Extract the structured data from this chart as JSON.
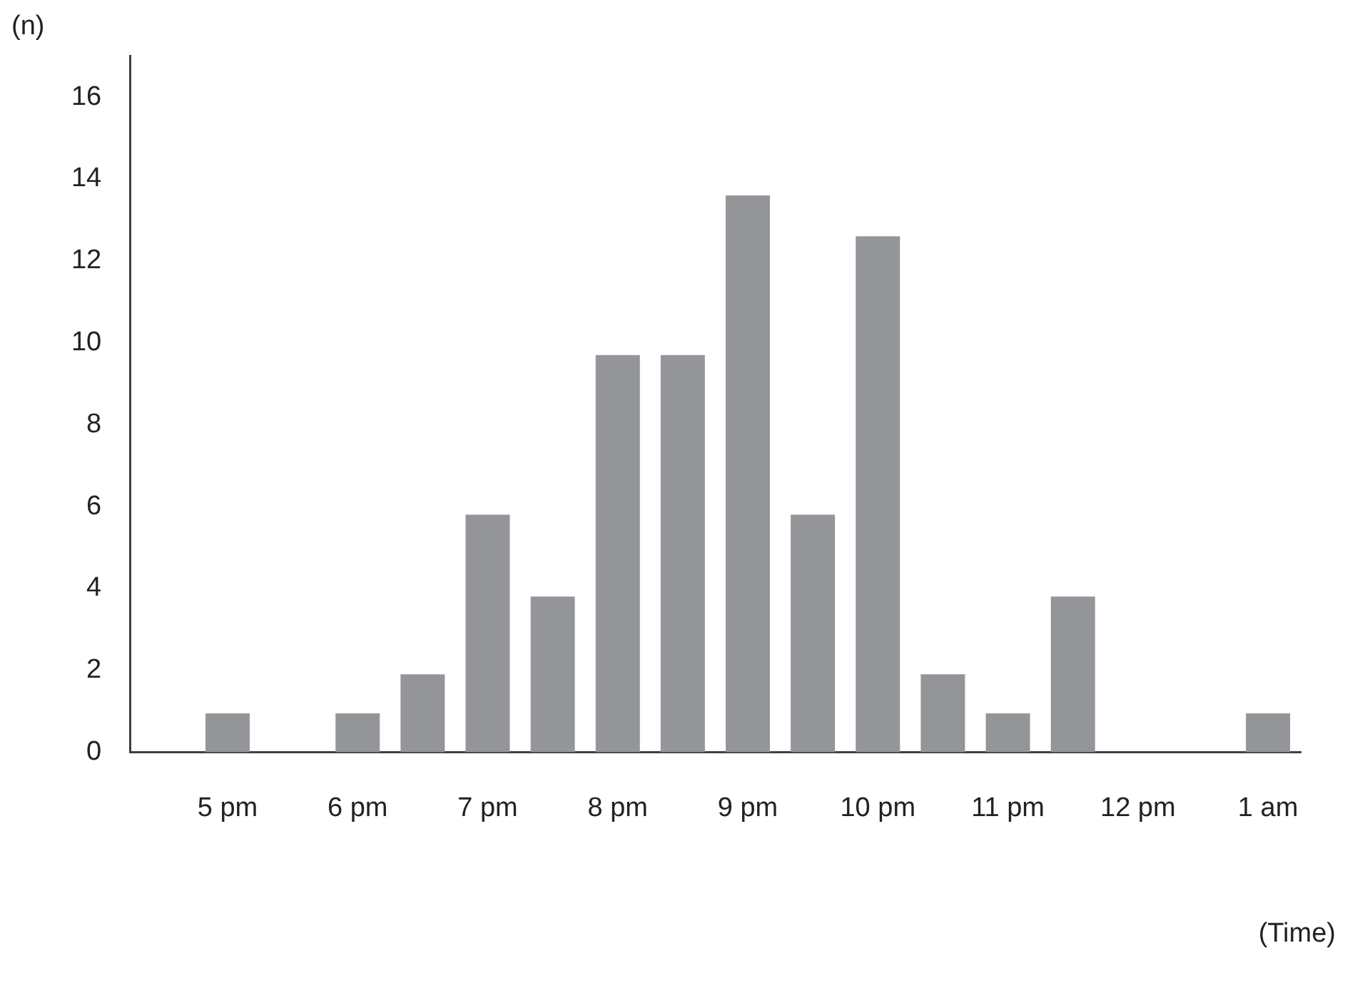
{
  "chart_data": {
    "type": "bar",
    "xlabel": "(Time)",
    "ylabel": "(n)",
    "categories": [
      null,
      "5 pm",
      null,
      "6 pm",
      null,
      "7 pm",
      null,
      "8 pm",
      null,
      "9 pm",
      null,
      "10 pm",
      null,
      "11 pm",
      null,
      "12 pm",
      null,
      "1 am"
    ],
    "values": [
      0,
      0.95,
      0,
      0.95,
      1.9,
      5.8,
      3.8,
      9.7,
      9.7,
      13.6,
      5.8,
      12.6,
      1.9,
      0.95,
      3.8,
      0,
      0,
      0.95
    ],
    "color": "#939598",
    "ylim": [
      0,
      17
    ],
    "yticks": [
      0,
      2,
      4,
      6,
      8,
      10,
      12,
      14,
      16
    ],
    "grid": false,
    "legend": false
  }
}
